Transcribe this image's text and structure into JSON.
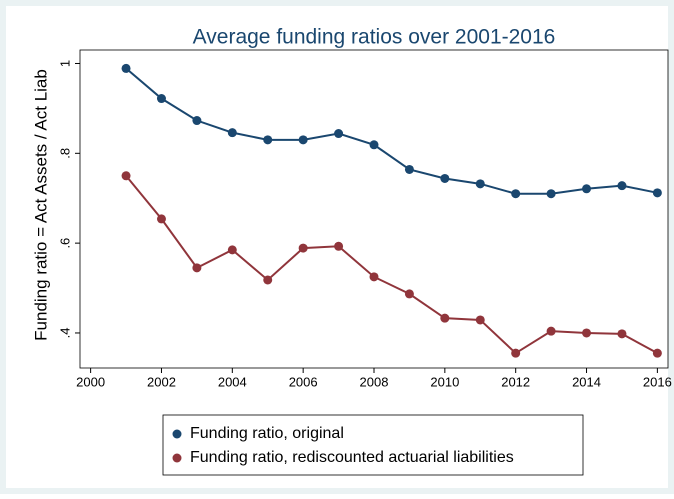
{
  "chart_data": {
    "type": "line",
    "title": "Average funding ratios over 2001-2016",
    "y_label": "Funding ratio = Act Assets / Act Liab",
    "x": [
      2001,
      2002,
      2003,
      2004,
      2005,
      2006,
      2007,
      2008,
      2009,
      2010,
      2011,
      2012,
      2013,
      2014,
      2015,
      2016
    ],
    "series": [
      {
        "name": "Funding ratio, original",
        "color": "#1a476f",
        "values": [
          0.989,
          0.922,
          0.873,
          0.846,
          0.83,
          0.83,
          0.844,
          0.819,
          0.764,
          0.744,
          0.732,
          0.71,
          0.71,
          0.721,
          0.728,
          0.712
        ]
      },
      {
        "name": "Funding ratio, rediscounted actuarial liabilities",
        "color": "#90353b",
        "values": [
          0.75,
          0.654,
          0.545,
          0.585,
          0.518,
          0.589,
          0.593,
          0.525,
          0.487,
          0.433,
          0.429,
          0.355,
          0.404,
          0.4,
          0.398,
          0.355
        ]
      }
    ],
    "xlim": [
      1999.7,
      2016.3
    ],
    "xticks": [
      2000,
      2002,
      2004,
      2006,
      2008,
      2010,
      2012,
      2014,
      2016
    ],
    "ylim": [
      0.322,
      1.03
    ],
    "yticks": [
      {
        "value": 0.4,
        "label": ".4"
      },
      {
        "value": 0.6,
        "label": ".6"
      },
      {
        "value": 0.8,
        "label": ".8"
      },
      1
    ]
  }
}
